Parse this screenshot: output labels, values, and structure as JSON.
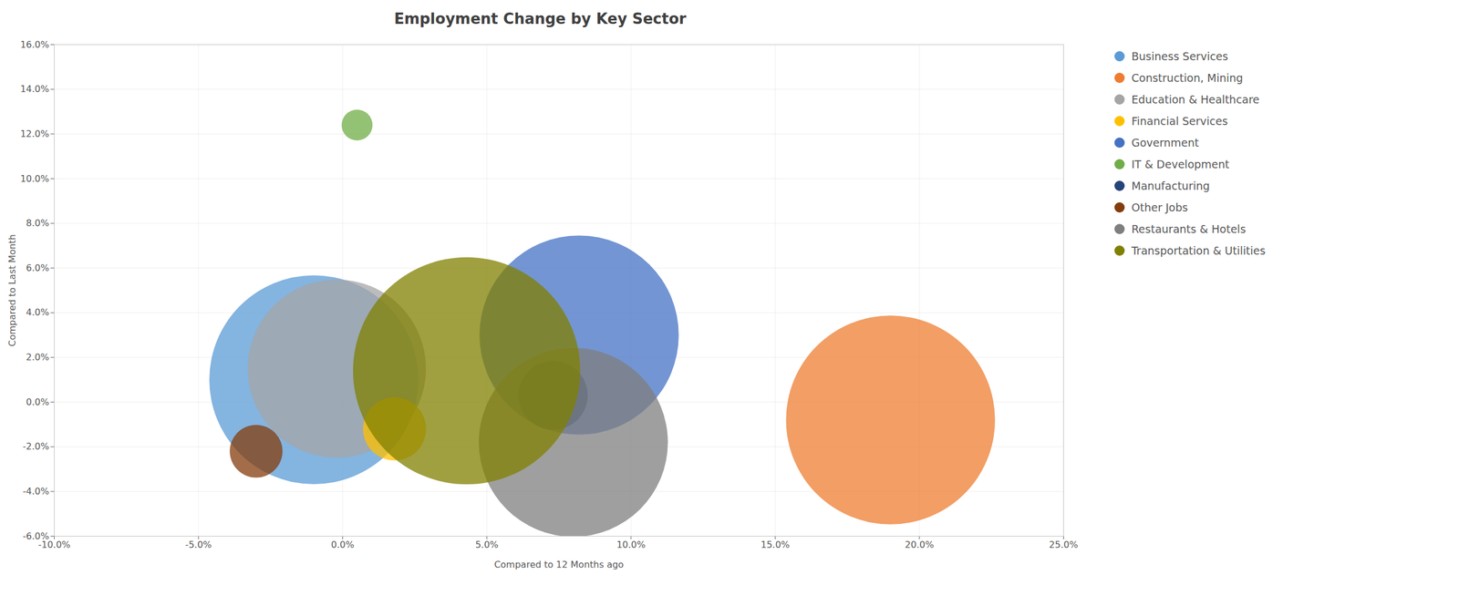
{
  "chart_data": {
    "type": "scatter",
    "title": "Employment Change by Key Sector",
    "xlabel": "Compared to 12 Months ago",
    "ylabel": "Compared to Last Month",
    "xlim": [
      -0.1,
      0.25
    ],
    "ylim": [
      -0.06,
      0.16
    ],
    "xticks": [
      {
        "value": -0.1,
        "label": "-10.0%"
      },
      {
        "value": -0.05,
        "label": "-5.0%"
      },
      {
        "value": 0.0,
        "label": "0.0%"
      },
      {
        "value": 0.05,
        "label": "5.0%"
      },
      {
        "value": 0.1,
        "label": "10.0%"
      },
      {
        "value": 0.15,
        "label": "15.0%"
      },
      {
        "value": 0.2,
        "label": "20.0%"
      },
      {
        "value": 0.25,
        "label": "25.0%"
      }
    ],
    "yticks": [
      {
        "value": -0.06,
        "label": "-6.0%"
      },
      {
        "value": -0.04,
        "label": "-4.0%"
      },
      {
        "value": -0.02,
        "label": "-2.0%"
      },
      {
        "value": 0.0,
        "label": "0.0%"
      },
      {
        "value": 0.02,
        "label": "2.0%"
      },
      {
        "value": 0.04,
        "label": "4.0%"
      },
      {
        "value": 0.06,
        "label": "6.0%"
      },
      {
        "value": 0.08,
        "label": "8.0%"
      },
      {
        "value": 0.1,
        "label": "10.0%"
      },
      {
        "value": 0.12,
        "label": "12.0%"
      },
      {
        "value": 0.14,
        "label": "14.0%"
      },
      {
        "value": 0.16,
        "label": "16.0%"
      }
    ],
    "grid": true,
    "legend": "right",
    "series": [
      {
        "name": "Business Services",
        "color": "#5b9bd5",
        "x": [
          -0.01
        ],
        "y": [
          0.01
        ],
        "size": [
          55000
        ]
      },
      {
        "name": "Construction, Mining",
        "color": "#ed7d31",
        "x": [
          0.19
        ],
        "y": [
          -0.008
        ],
        "size": [
          55000
        ]
      },
      {
        "name": "Education & Healthcare",
        "color": "#a5a5a5",
        "x": [
          -0.002
        ],
        "y": [
          0.015
        ],
        "size": [
          40000
        ]
      },
      {
        "name": "Financial Services",
        "color": "#ffc000",
        "x": [
          0.018
        ],
        "y": [
          -0.012
        ],
        "size": [
          5000
        ]
      },
      {
        "name": "Government",
        "color": "#4472c4",
        "x": [
          0.082
        ],
        "y": [
          0.03
        ],
        "size": [
          50000
        ]
      },
      {
        "name": "IT & Development",
        "color": "#70ad47",
        "x": [
          0.005
        ],
        "y": [
          0.124
        ],
        "size": [
          1200
        ]
      },
      {
        "name": "Manufacturing",
        "color": "#264478",
        "x": [
          0.073
        ],
        "y": [
          0.003
        ],
        "size": [
          6000
        ]
      },
      {
        "name": "Other Jobs",
        "color": "#843c0c",
        "x": [
          -0.03
        ],
        "y": [
          -0.022
        ],
        "size": [
          3500
        ]
      },
      {
        "name": "Restaurants & Hotels",
        "color": "#7f7f7f",
        "x": [
          0.08
        ],
        "y": [
          -0.018
        ],
        "size": [
          45000
        ]
      },
      {
        "name": "Transportation & Utilities",
        "color": "#808000",
        "x": [
          0.043
        ],
        "y": [
          0.014
        ],
        "size": [
          65000
        ]
      }
    ]
  }
}
